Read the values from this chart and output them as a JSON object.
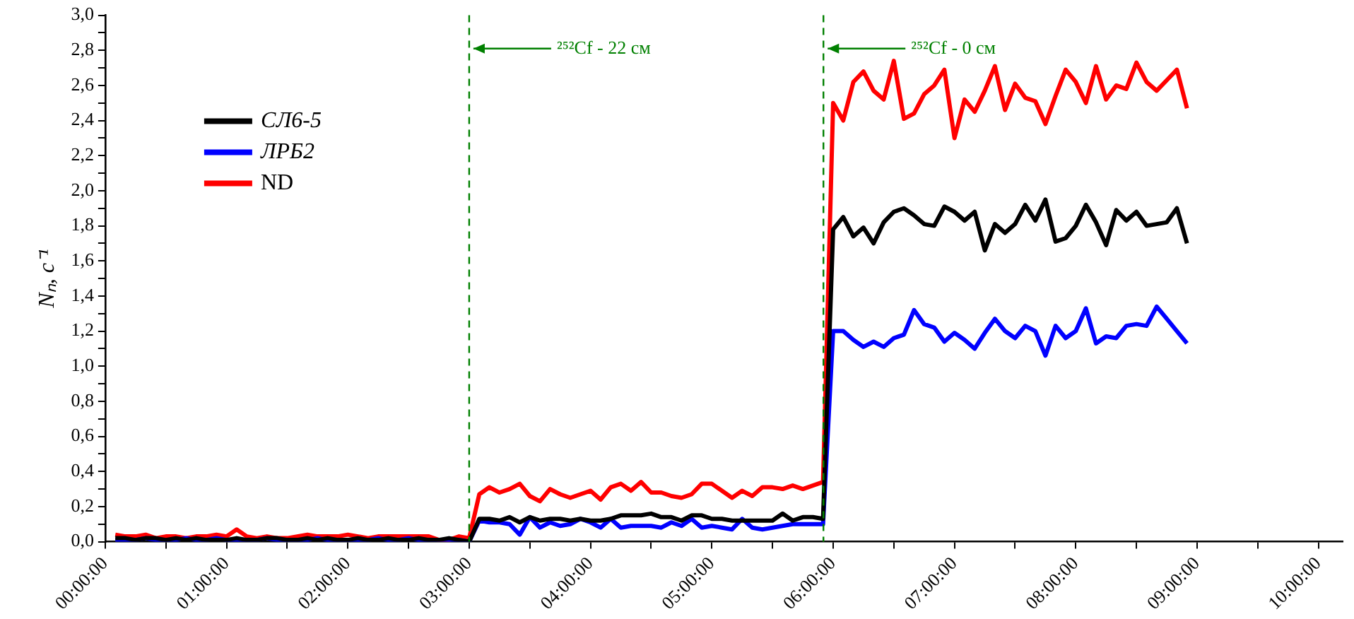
{
  "chart_data": {
    "type": "line",
    "ylabel": "Nₙ, c⁻¹",
    "x": [
      0.0833,
      0.1667,
      0.25,
      0.3333,
      0.4167,
      0.5,
      0.5833,
      0.6667,
      0.75,
      0.8333,
      0.9167,
      1,
      1.0833,
      1.1667,
      1.25,
      1.3333,
      1.4167,
      1.5,
      1.5833,
      1.6667,
      1.75,
      1.8333,
      1.9167,
      2,
      2.0833,
      2.1667,
      2.25,
      2.3333,
      2.4167,
      2.5,
      2.5833,
      2.6667,
      2.75,
      2.8333,
      2.9167,
      3,
      3.0833,
      3.1667,
      3.25,
      3.3333,
      3.4167,
      3.5,
      3.5833,
      3.6667,
      3.75,
      3.8333,
      3.9167,
      4,
      4.0833,
      4.1667,
      4.25,
      4.3333,
      4.4167,
      4.5,
      4.5833,
      4.6667,
      4.75,
      4.8333,
      4.9167,
      5,
      5.0833,
      5.1667,
      5.25,
      5.3333,
      5.4167,
      5.5,
      5.5833,
      5.6667,
      5.75,
      5.8333,
      5.9167,
      6,
      6.0833,
      6.1667,
      6.25,
      6.3333,
      6.4167,
      6.5,
      6.5833,
      6.6667,
      6.75,
      6.8333,
      6.9167,
      7,
      7.0833,
      7.1667,
      7.25,
      7.3333,
      7.4167,
      7.5,
      7.5833,
      7.6667,
      7.75,
      7.8333,
      7.9167,
      8,
      8.0833,
      8.1667,
      8.25,
      8.3333,
      8.4167,
      8.5,
      8.5833,
      8.6667,
      8.75,
      8.8333,
      8.9167
    ],
    "series": [
      {
        "name": "СЛ6-5",
        "color": "#000000",
        "values": [
          0.02,
          0.02,
          0.01,
          0.02,
          0.02,
          0.01,
          0.02,
          0.01,
          0.02,
          0.01,
          0.01,
          0.01,
          0.02,
          0.01,
          0.01,
          0.02,
          0.02,
          0.01,
          0.01,
          0.02,
          0.01,
          0.02,
          0.01,
          0.01,
          0.02,
          0.01,
          0.01,
          0.02,
          0.01,
          0.01,
          0.02,
          0.01,
          0.01,
          0.02,
          0.01,
          0.0,
          0.13,
          0.13,
          0.12,
          0.14,
          0.11,
          0.14,
          0.12,
          0.13,
          0.13,
          0.12,
          0.13,
          0.12,
          0.12,
          0.13,
          0.15,
          0.15,
          0.15,
          0.16,
          0.14,
          0.14,
          0.12,
          0.15,
          0.15,
          0.13,
          0.13,
          0.12,
          0.12,
          0.12,
          0.12,
          0.12,
          0.16,
          0.12,
          0.14,
          0.14,
          0.13,
          1.78,
          1.85,
          1.74,
          1.79,
          1.7,
          1.82,
          1.88,
          1.9,
          1.86,
          1.81,
          1.8,
          1.91,
          1.88,
          1.83,
          1.88,
          1.66,
          1.81,
          1.76,
          1.81,
          1.92,
          1.83,
          1.95,
          1.71,
          1.73,
          1.8,
          1.92,
          1.82,
          1.69,
          1.89,
          1.83,
          1.88,
          1.8,
          1.81,
          1.82,
          1.9,
          1.7
        ]
      },
      {
        "name": "ЛРБ2",
        "color": "#0000ff",
        "values": [
          0.01,
          0.01,
          0.01,
          0.02,
          0.01,
          0.01,
          0.01,
          0.02,
          0.01,
          0.01,
          0.02,
          0.01,
          0.01,
          0.01,
          0.01,
          0.02,
          0.01,
          0.01,
          0.01,
          0.01,
          0.02,
          0.01,
          0.01,
          0.01,
          0.01,
          0.01,
          0.02,
          0.01,
          0.01,
          0.02,
          0.01,
          0.01,
          0.01,
          0.01,
          0.01,
          0.0,
          0.12,
          0.11,
          0.11,
          0.1,
          0.04,
          0.14,
          0.08,
          0.11,
          0.09,
          0.1,
          0.13,
          0.11,
          0.08,
          0.13,
          0.08,
          0.09,
          0.09,
          0.09,
          0.08,
          0.11,
          0.09,
          0.13,
          0.08,
          0.09,
          0.08,
          0.07,
          0.13,
          0.08,
          0.07,
          0.08,
          0.09,
          0.1,
          0.1,
          0.1,
          0.1,
          1.2,
          1.2,
          1.15,
          1.11,
          1.14,
          1.11,
          1.16,
          1.18,
          1.32,
          1.24,
          1.22,
          1.14,
          1.19,
          1.15,
          1.1,
          1.19,
          1.27,
          1.2,
          1.16,
          1.23,
          1.2,
          1.06,
          1.23,
          1.16,
          1.2,
          1.33,
          1.13,
          1.17,
          1.16,
          1.23,
          1.24,
          1.23,
          1.34,
          1.27,
          1.2,
          1.13
        ]
      },
      {
        "name": "ND",
        "color": "#ff0000",
        "values": [
          0.04,
          0.03,
          0.03,
          0.04,
          0.02,
          0.03,
          0.03,
          0.02,
          0.03,
          0.03,
          0.04,
          0.03,
          0.07,
          0.03,
          0.02,
          0.03,
          0.02,
          0.02,
          0.03,
          0.04,
          0.03,
          0.03,
          0.03,
          0.04,
          0.03,
          0.02,
          0.03,
          0.03,
          0.03,
          0.03,
          0.03,
          0.03,
          0.01,
          0.01,
          0.03,
          0.02,
          0.27,
          0.31,
          0.28,
          0.3,
          0.33,
          0.26,
          0.23,
          0.3,
          0.27,
          0.25,
          0.27,
          0.29,
          0.24,
          0.31,
          0.33,
          0.29,
          0.34,
          0.28,
          0.28,
          0.26,
          0.25,
          0.27,
          0.33,
          0.33,
          0.29,
          0.25,
          0.29,
          0.26,
          0.31,
          0.31,
          0.3,
          0.32,
          0.3,
          0.32,
          0.34,
          2.5,
          2.4,
          2.62,
          2.68,
          2.57,
          2.52,
          2.74,
          2.41,
          2.44,
          2.55,
          2.6,
          2.69,
          2.3,
          2.52,
          2.45,
          2.57,
          2.71,
          2.46,
          2.61,
          2.53,
          2.51,
          2.38,
          2.54,
          2.69,
          2.62,
          2.5,
          2.71,
          2.52,
          2.6,
          2.58,
          2.73,
          2.62,
          2.57,
          2.63,
          2.69,
          2.47
        ]
      }
    ],
    "xlim": [
      0,
      10.2
    ],
    "xticks": [
      {
        "value": 0,
        "label": "00:00:00"
      },
      {
        "value": 0.5,
        "label": null
      },
      {
        "value": 1,
        "label": "01:00:00"
      },
      {
        "value": 1.5,
        "label": null
      },
      {
        "value": 2,
        "label": "02:00:00"
      },
      {
        "value": 2.5,
        "label": null
      },
      {
        "value": 3,
        "label": "03:00:00"
      },
      {
        "value": 3.5,
        "label": null
      },
      {
        "value": 4,
        "label": "04:00:00"
      },
      {
        "value": 4.5,
        "label": null
      },
      {
        "value": 5,
        "label": "05:00:00"
      },
      {
        "value": 5.5,
        "label": null
      },
      {
        "value": 6,
        "label": "06:00:00"
      },
      {
        "value": 6.5,
        "label": null
      },
      {
        "value": 7,
        "label": "07:00:00"
      },
      {
        "value": 7.5,
        "label": null
      },
      {
        "value": 8,
        "label": "08:00:00"
      },
      {
        "value": 8.5,
        "label": null
      },
      {
        "value": 9,
        "label": "09:00:00"
      },
      {
        "value": 9.5,
        "label": null
      },
      {
        "value": 10,
        "label": "10:00:00"
      }
    ],
    "ylim": [
      0,
      3.0
    ],
    "yticks": [
      {
        "value": 0,
        "label": "0,0"
      },
      {
        "value": 0.1,
        "label": null
      },
      {
        "value": 0.2,
        "label": "0,2"
      },
      {
        "value": 0.3,
        "label": null
      },
      {
        "value": 0.4,
        "label": "0,4"
      },
      {
        "value": 0.5,
        "label": null
      },
      {
        "value": 0.6,
        "label": "0,6"
      },
      {
        "value": 0.7,
        "label": null
      },
      {
        "value": 0.8,
        "label": "0,8"
      },
      {
        "value": 0.9,
        "label": null
      },
      {
        "value": 1.0,
        "label": "1,0"
      },
      {
        "value": 1.1,
        "label": null
      },
      {
        "value": 1.2,
        "label": "1,2"
      },
      {
        "value": 1.3,
        "label": null
      },
      {
        "value": 1.4,
        "label": "1,4"
      },
      {
        "value": 1.5,
        "label": null
      },
      {
        "value": 1.6,
        "label": "1,6"
      },
      {
        "value": 1.7,
        "label": null
      },
      {
        "value": 1.8,
        "label": "1,8"
      },
      {
        "value": 1.9,
        "label": null
      },
      {
        "value": 2.0,
        "label": "2,0"
      },
      {
        "value": 2.1,
        "label": null
      },
      {
        "value": 2.2,
        "label": "2,2"
      },
      {
        "value": 2.3,
        "label": null
      },
      {
        "value": 2.4,
        "label": "2,4"
      },
      {
        "value": 2.5,
        "label": null
      },
      {
        "value": 2.6,
        "label": "2,6"
      },
      {
        "value": 2.7,
        "label": null
      },
      {
        "value": 2.8,
        "label": "2,8"
      },
      {
        "value": 2.9,
        "label": null
      },
      {
        "value": 3.0,
        "label": "3,0"
      }
    ],
    "ref_lines": [
      {
        "axis": "x",
        "value": 3.0,
        "color": "#008000",
        "line_style": "dashed"
      },
      {
        "axis": "x",
        "value": 5.92,
        "color": "#008000",
        "line_style": "dashed"
      }
    ],
    "annotations": [
      {
        "text": "²⁵²Cf - 22 см",
        "x": 3.0,
        "y": 2.81
      },
      {
        "text": "²⁵²Cf - 0 см",
        "x": 5.92,
        "y": 2.81
      }
    ],
    "grid": false,
    "legend": "top left",
    "marker": "none",
    "line_style": "solid"
  }
}
